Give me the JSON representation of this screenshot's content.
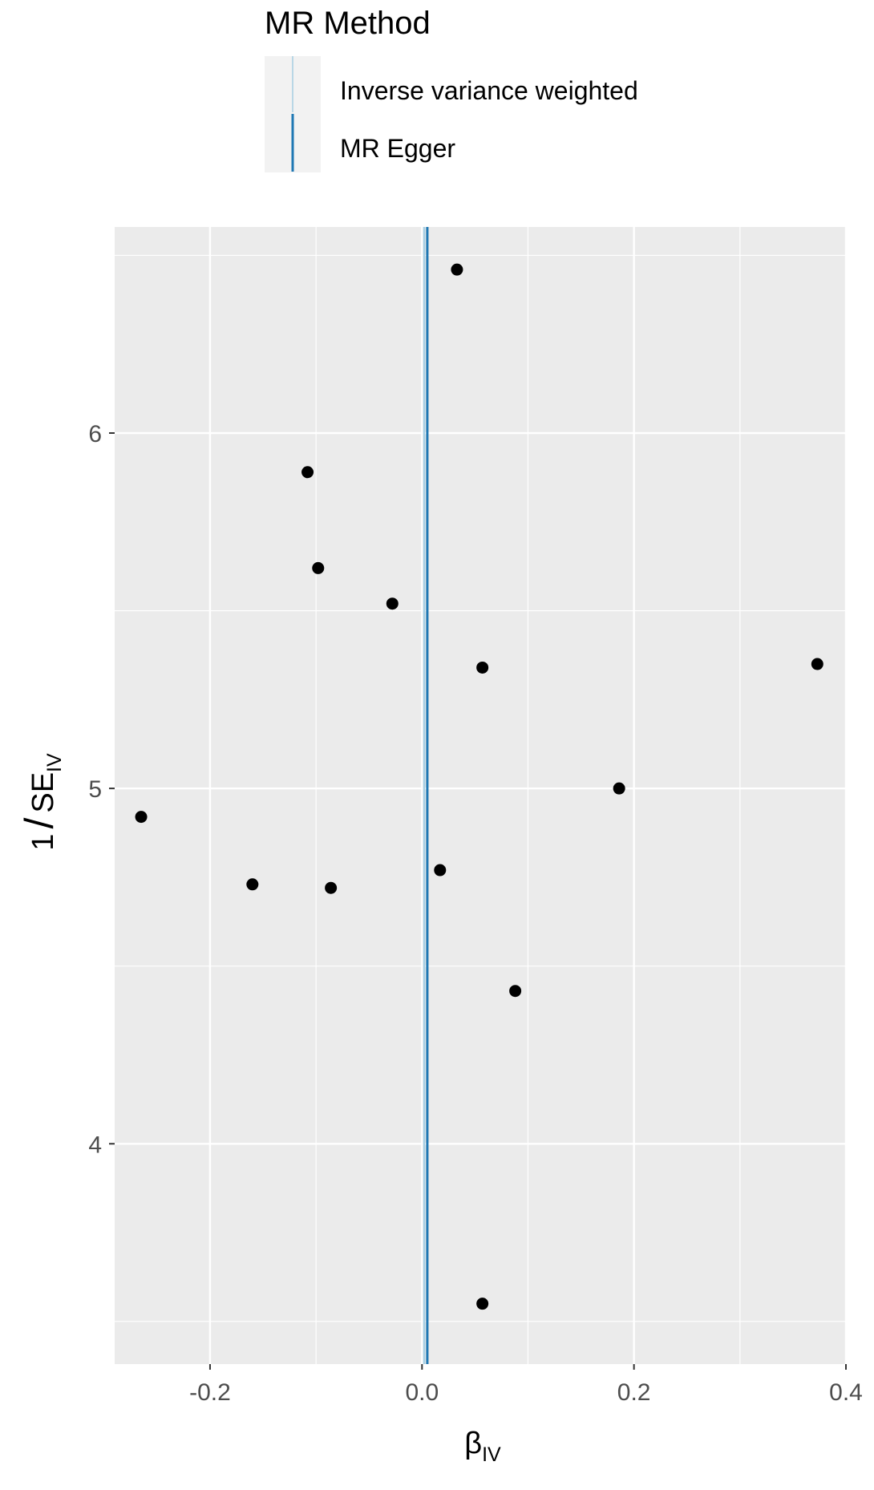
{
  "chart_data": {
    "type": "scatter",
    "legend": {
      "title": "MR Method",
      "placement": "top",
      "entries": [
        {
          "label": "Inverse variance weighted",
          "color": "#a6cee3"
        },
        {
          "label": "MR Egger",
          "color": "#1f78b4"
        }
      ]
    },
    "xlabel": {
      "main": "β",
      "sub": "IV"
    },
    "ylabel": {
      "prefix": "1",
      "main": "SE",
      "sub": "IV"
    },
    "xlim": [
      -0.29,
      0.4
    ],
    "ylim": [
      3.38,
      6.58
    ],
    "x_ticks": [
      -0.2,
      0.0,
      0.2,
      0.4
    ],
    "x_tick_labels": [
      "-0.2",
      "0.0",
      "0.2",
      "0.4"
    ],
    "y_ticks": [
      4,
      5,
      6
    ],
    "y_tick_labels": [
      "4",
      "5",
      "6"
    ],
    "grid": true,
    "point_color": "#000000",
    "panel_color": "#ebebeb",
    "points": [
      {
        "x": 0.033,
        "y": 6.46
      },
      {
        "x": -0.108,
        "y": 5.89
      },
      {
        "x": -0.098,
        "y": 5.62
      },
      {
        "x": -0.028,
        "y": 5.52
      },
      {
        "x": 0.057,
        "y": 5.34
      },
      {
        "x": 0.373,
        "y": 5.35
      },
      {
        "x": 0.186,
        "y": 5.0
      },
      {
        "x": -0.265,
        "y": 4.92
      },
      {
        "x": -0.16,
        "y": 4.73
      },
      {
        "x": -0.086,
        "y": 4.72
      },
      {
        "x": 0.017,
        "y": 4.77
      },
      {
        "x": 0.088,
        "y": 4.43
      },
      {
        "x": 0.057,
        "y": 3.55
      }
    ],
    "vertical_lines": [
      {
        "method": "Inverse variance weighted",
        "x": 0.002,
        "color": "#a6cee3"
      },
      {
        "method": "MR Egger",
        "x": 0.005,
        "color": "#1f78b4"
      }
    ]
  }
}
